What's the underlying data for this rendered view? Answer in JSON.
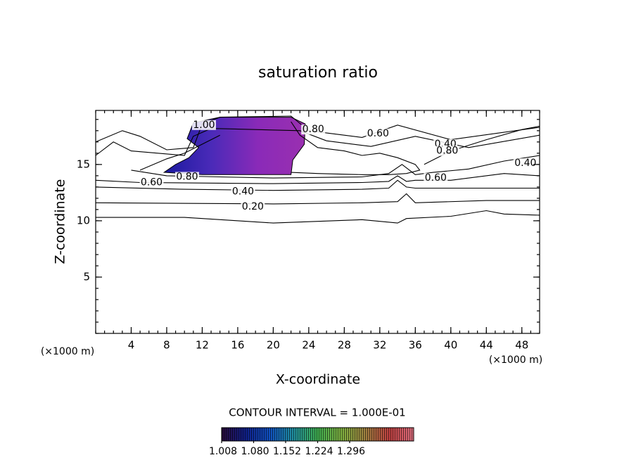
{
  "chart_data": {
    "type": "contour",
    "title": "saturation ratio",
    "xlabel": "X-coordinate",
    "ylabel": "Z-coordinate",
    "y_unit_label": "(×1000 m)",
    "x_unit_label": "(×1000 m)",
    "xlim": [
      0,
      50
    ],
    "ylim": [
      0,
      19.8
    ],
    "xticks": [
      4,
      8,
      12,
      16,
      20,
      24,
      28,
      32,
      36,
      40,
      44,
      48
    ],
    "yticks": [
      5,
      10,
      15
    ],
    "contour_interval_label": "CONTOUR INTERVAL = 1.000E-01",
    "contours": [
      {
        "x": [
          0,
          10,
          20,
          30,
          34,
          35,
          40,
          44,
          46,
          50
        ],
        "y": [
          10.3,
          10.3,
          9.8,
          10.1,
          9.8,
          10.2,
          10.4,
          10.9,
          10.6,
          10.5
        ]
      },
      {
        "x": [
          0,
          20,
          30,
          34,
          35,
          36,
          44,
          50
        ],
        "y": [
          11.6,
          11.5,
          11.6,
          11.7,
          12.4,
          11.6,
          11.8,
          11.8
        ]
      },
      {
        "x": [
          0,
          10,
          20,
          30,
          33,
          34,
          35,
          36,
          40,
          50
        ],
        "y": [
          13.0,
          12.8,
          12.7,
          12.8,
          12.9,
          13.6,
          13.0,
          12.9,
          12.9,
          12.9
        ]
      },
      {
        "x": [
          0,
          5,
          20,
          30,
          33,
          34,
          35,
          36,
          40,
          46,
          50
        ],
        "y": [
          13.6,
          13.4,
          13.3,
          13.4,
          13.5,
          14.0,
          13.5,
          13.6,
          13.6,
          14.2,
          14.0
        ]
      },
      {
        "x": [
          4,
          8,
          20,
          30,
          33,
          34.5,
          36,
          38,
          42,
          46,
          50
        ],
        "y": [
          14.5,
          14.0,
          13.8,
          13.9,
          14.2,
          15.0,
          14.1,
          14.3,
          14.6,
          15.3,
          15.8
        ]
      },
      {
        "x": [
          5,
          8,
          10,
          12,
          14
        ],
        "y": [
          14.5,
          15.5,
          16.0,
          16.8,
          17.6
        ]
      },
      {
        "x": [
          37,
          40,
          44,
          48,
          50
        ],
        "y": [
          15.0,
          16.2,
          17.2,
          18.1,
          18.4
        ]
      },
      {
        "x": [
          0,
          3,
          5,
          8,
          11,
          12,
          14,
          22,
          24,
          30,
          34,
          40,
          50
        ],
        "y": [
          17.0,
          18.0,
          17.5,
          16.3,
          16.5,
          18.6,
          19.2,
          19.3,
          18.0,
          17.4,
          18.5,
          17.2,
          18.3
        ]
      },
      {
        "x": [
          0,
          2,
          4,
          7,
          10,
          11,
          13,
          23,
          26,
          31,
          36,
          42,
          50
        ],
        "y": [
          15.8,
          17.0,
          16.2,
          16.0,
          15.8,
          17.5,
          18.2,
          18.0,
          17.1,
          16.6,
          17.5,
          16.5,
          17.6
        ]
      },
      {
        "x": [
          22,
          23,
          25,
          28,
          30,
          32,
          34,
          36,
          36.5,
          35,
          33,
          30,
          25,
          22
        ],
        "y": [
          18.8,
          17.6,
          16.5,
          16.2,
          15.8,
          16.0,
          15.6,
          15.0,
          14.5,
          14.2,
          14.1,
          14.1,
          14.2,
          14.3
        ]
      }
    ],
    "contour_labels": [
      {
        "text": "0.20",
        "x": 17.7,
        "y": 11.25
      },
      {
        "text": "0.40",
        "x": 16.6,
        "y": 12.6
      },
      {
        "text": "0.60",
        "x": 6.3,
        "y": 13.4
      },
      {
        "text": "0.80",
        "x": 10.3,
        "y": 13.9
      },
      {
        "text": "1.00",
        "x": 12.2,
        "y": 18.5
      },
      {
        "text": "0.80",
        "x": 24.5,
        "y": 18.1
      },
      {
        "text": "0.60",
        "x": 31.8,
        "y": 17.75
      },
      {
        "text": "0.40",
        "x": 39.4,
        "y": 16.8
      },
      {
        "text": "0.80",
        "x": 39.6,
        "y": 16.2
      },
      {
        "text": "0.60",
        "x": 38.3,
        "y": 13.8
      },
      {
        "text": "0.40",
        "x": 48.4,
        "y": 15.1
      }
    ],
    "filled_region": {
      "x": [
        7.7,
        12,
        22.0,
        22.2,
        23.5,
        23.6,
        22,
        14,
        11,
        10.3,
        11.6,
        10.5,
        9
      ],
      "y": [
        14.3,
        14.1,
        14.1,
        15.4,
        16.8,
        18.6,
        19.2,
        19.2,
        18.7,
        17.3,
        16.5,
        15.6,
        15.0
      ],
      "colors": [
        "#1a1aa0",
        "#4a2ab8",
        "#8a2ab8",
        "#9a30b0"
      ]
    },
    "colorbar": {
      "lim": [
        1.008,
        1.44
      ],
      "ticks": [
        {
          "value": 1.008,
          "label": "1.008"
        },
        {
          "value": 1.08,
          "label": "1.080"
        },
        {
          "value": 1.152,
          "label": "1.152"
        },
        {
          "value": 1.224,
          "label": "1.224"
        },
        {
          "value": 1.296,
          "label": "1.296"
        }
      ],
      "colors": [
        "#2a0a3a",
        "#10208a",
        "#1050c0",
        "#2090a0",
        "#40b050",
        "#80b040",
        "#a08040",
        "#c04040",
        "#e07080"
      ]
    }
  }
}
